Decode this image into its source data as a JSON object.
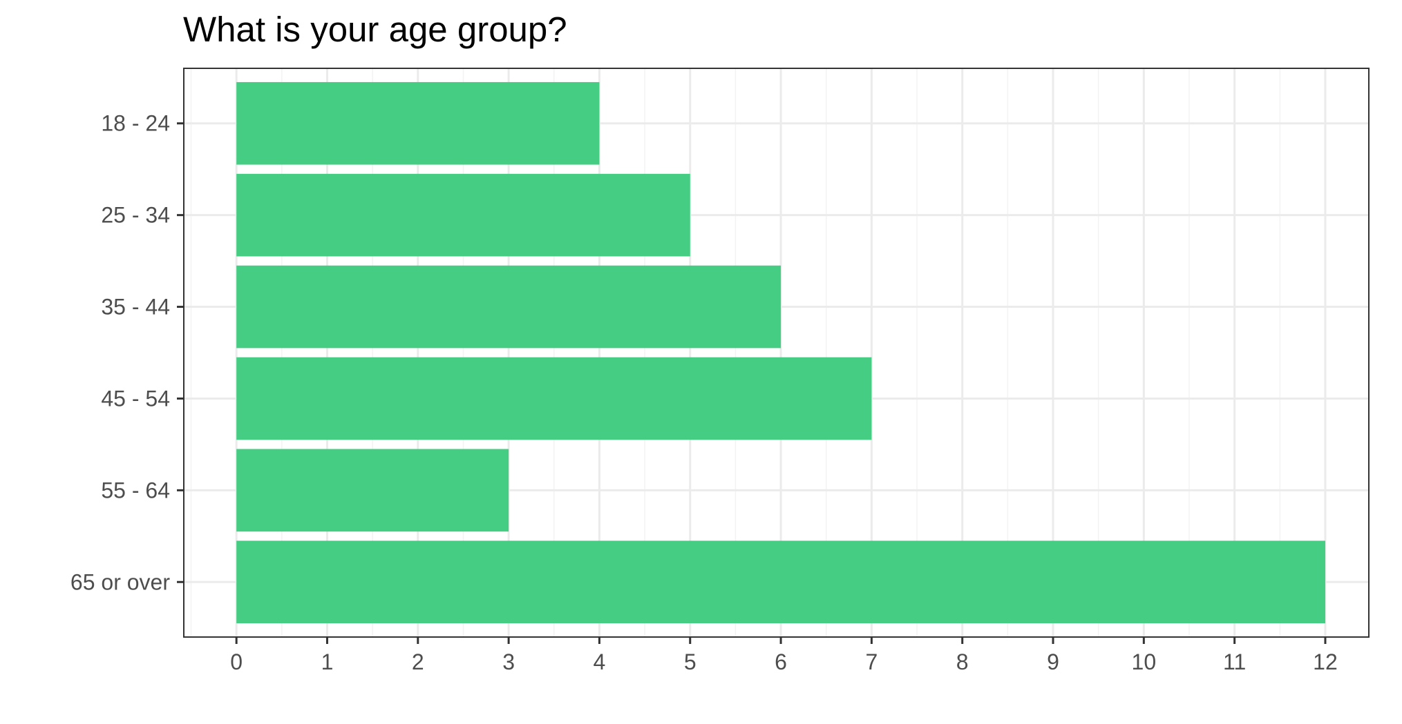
{
  "chart_data": {
    "type": "bar",
    "orientation": "horizontal",
    "title": "What is your age group?",
    "xlabel": "",
    "ylabel": "",
    "categories": [
      "18 - 24",
      "25 - 34",
      "35 - 44",
      "45 - 54",
      "55 - 64",
      "65 or over"
    ],
    "values": [
      4,
      5,
      6,
      7,
      3,
      12
    ],
    "xlim": [
      -0.58,
      12.48
    ],
    "x_ticks": [
      "0",
      "1",
      "2",
      "3",
      "4",
      "5",
      "6",
      "7",
      "8",
      "9",
      "10",
      "11",
      "12"
    ],
    "grid": true,
    "legend": "none",
    "colors": {
      "bar": "#44cd83",
      "grid_major": "#ebebeb",
      "grid_minor": "#f3f3f3",
      "panel_border": "#333333",
      "tick_text": "#4d4d4d"
    }
  }
}
